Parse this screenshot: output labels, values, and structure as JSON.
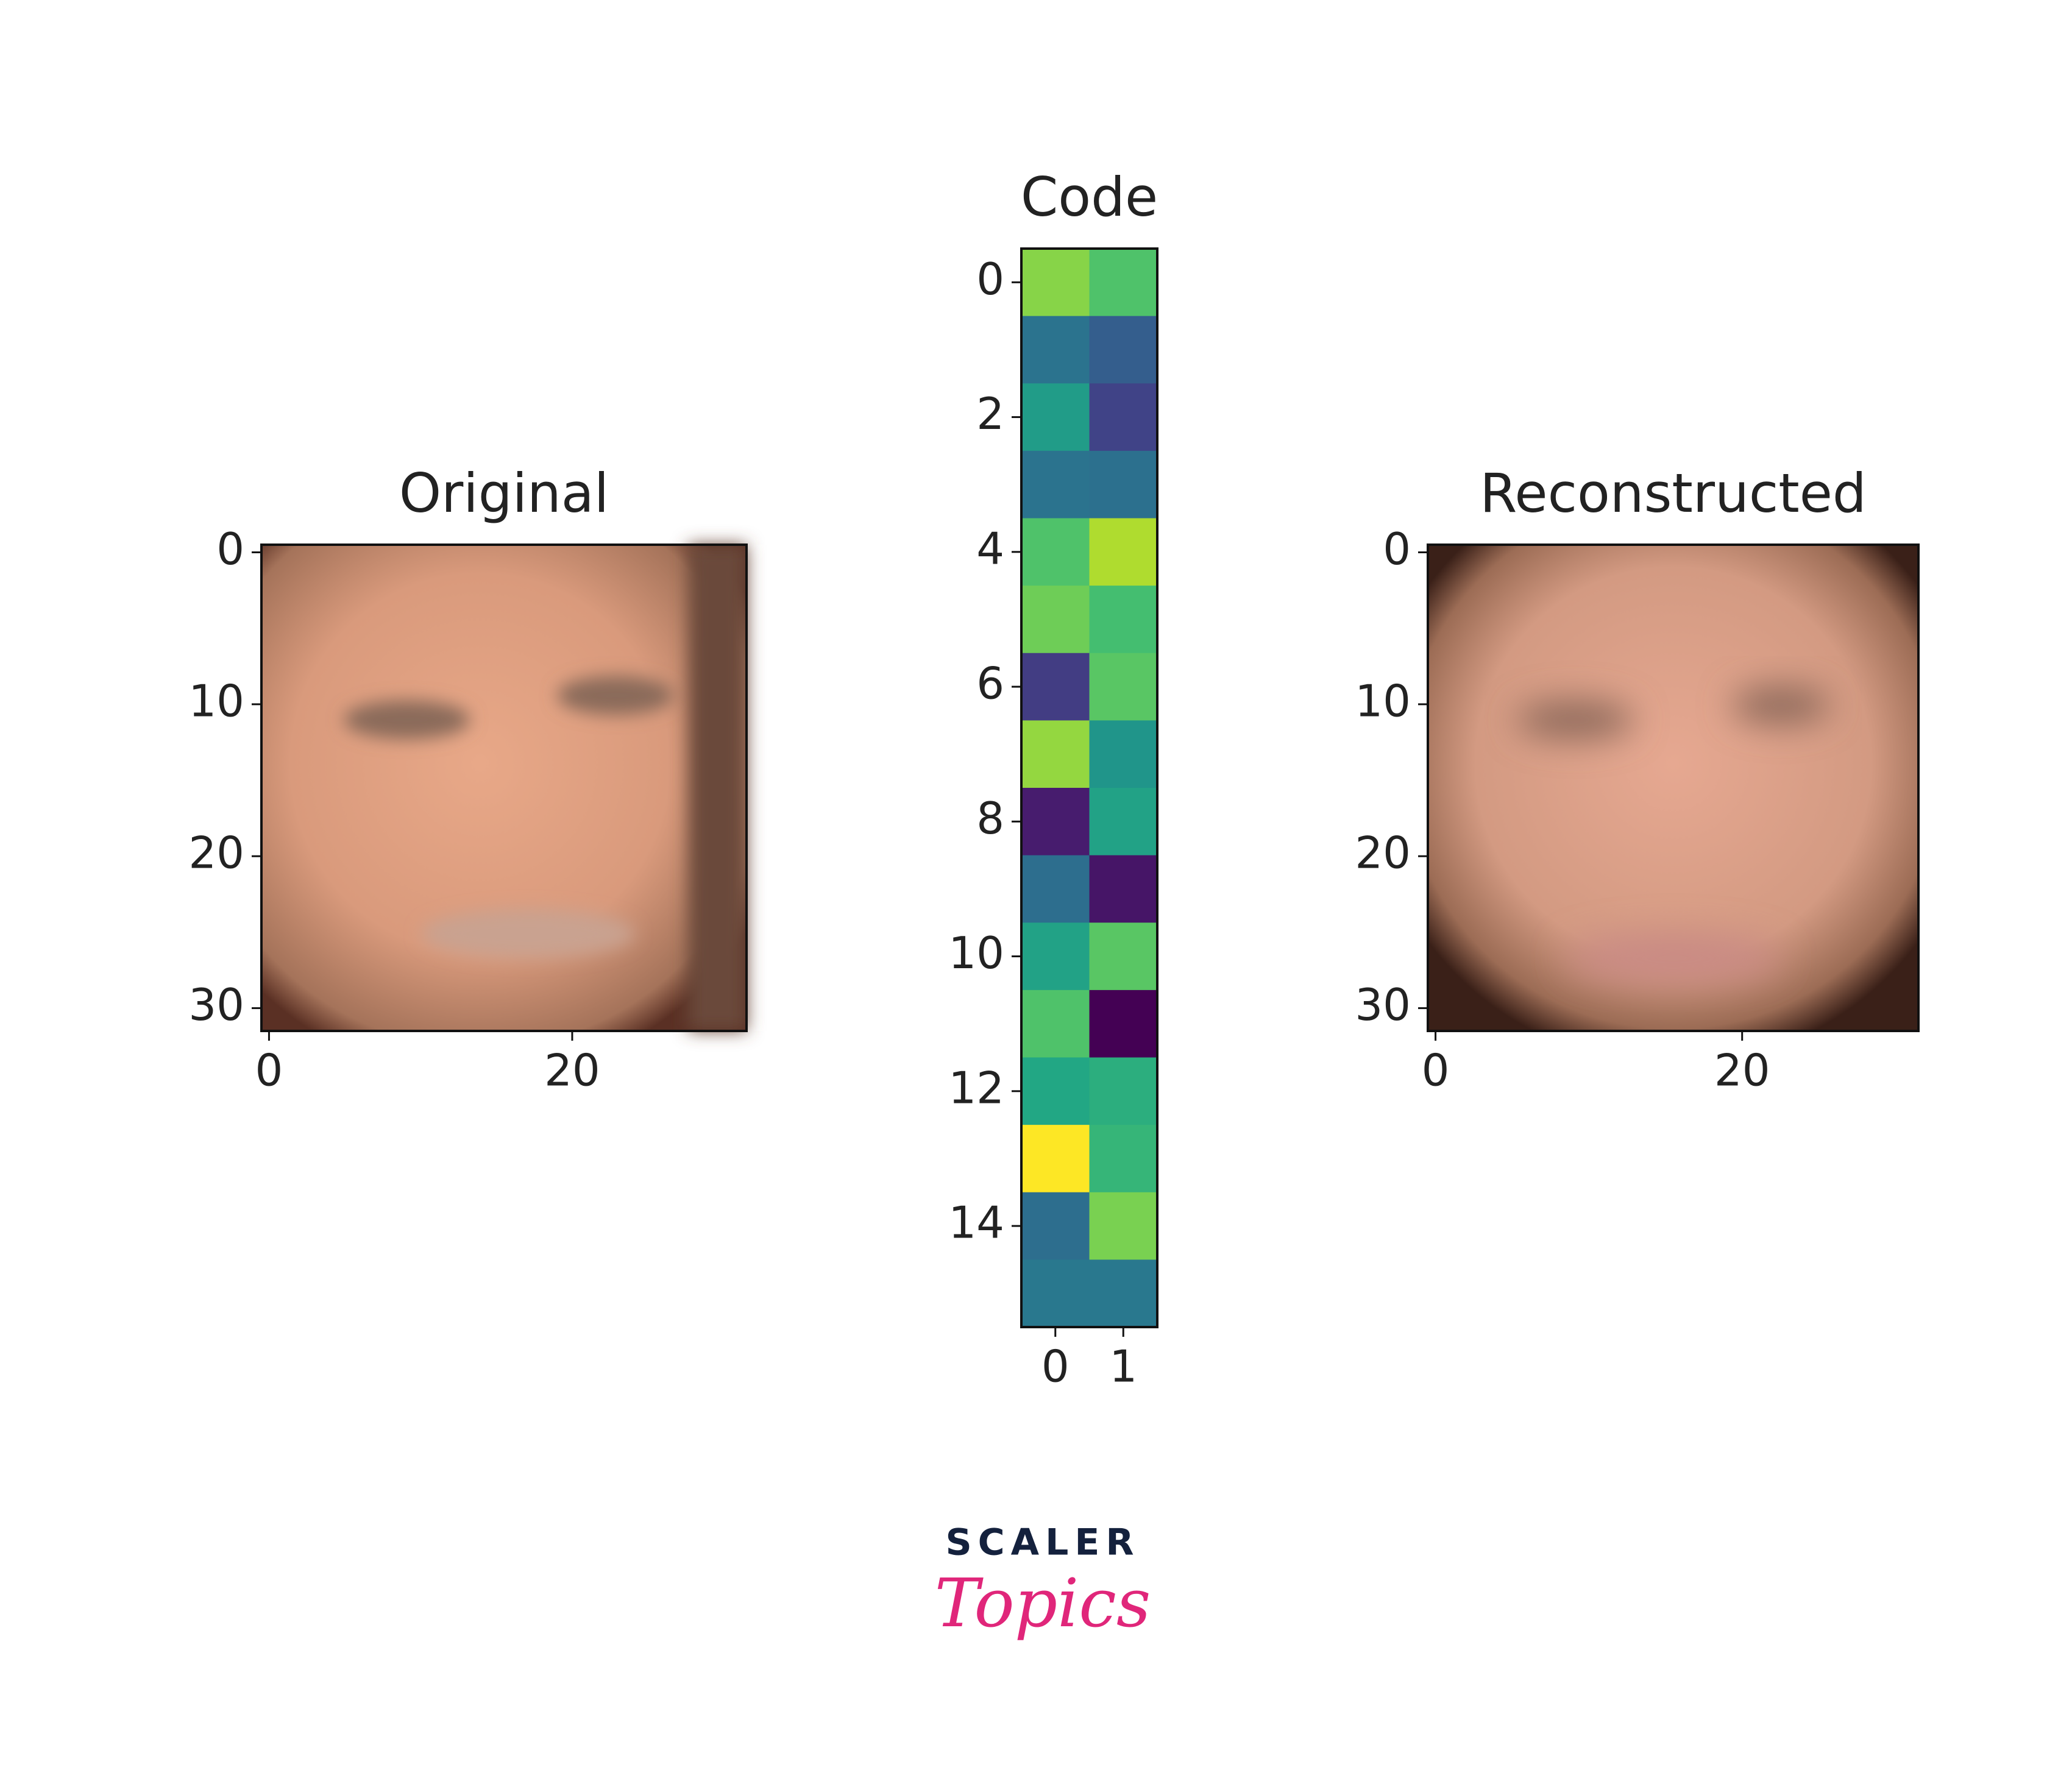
{
  "chart_data": [
    {
      "type": "image",
      "title": "Original",
      "xlim": [
        -0.5,
        31.5
      ],
      "ylim": [
        31.5,
        -0.5
      ],
      "xticks": [
        0,
        20
      ],
      "yticks": [
        0,
        10,
        20,
        30
      ]
    },
    {
      "type": "heatmap",
      "title": "Code",
      "colormap": "viridis",
      "xlim": [
        -0.5,
        1.5
      ],
      "ylim": [
        15.5,
        -0.5
      ],
      "xticks": [
        0,
        1
      ],
      "yticks": [
        0,
        2,
        4,
        6,
        8,
        10,
        12,
        14
      ],
      "values": [
        [
          0.82,
          0.72
        ],
        [
          0.38,
          0.3
        ],
        [
          0.55,
          0.2
        ],
        [
          0.38,
          0.37
        ],
        [
          0.72,
          0.88
        ],
        [
          0.78,
          0.7
        ],
        [
          0.18,
          0.74
        ],
        [
          0.84,
          0.52
        ],
        [
          0.08,
          0.58
        ],
        [
          0.36,
          0.06
        ],
        [
          0.58,
          0.74
        ],
        [
          0.72,
          0.0
        ],
        [
          0.6,
          0.63
        ],
        [
          1.0,
          0.66
        ],
        [
          0.36,
          0.8
        ],
        [
          0.4,
          0.4
        ]
      ]
    },
    {
      "type": "image",
      "title": "Reconstructed",
      "xlim": [
        -0.5,
        31.5
      ],
      "ylim": [
        31.5,
        -0.5
      ],
      "xticks": [
        0,
        20
      ],
      "yticks": [
        0,
        10,
        20,
        30
      ]
    }
  ],
  "logo": {
    "line1": "SCALER",
    "line2": "Topics"
  }
}
